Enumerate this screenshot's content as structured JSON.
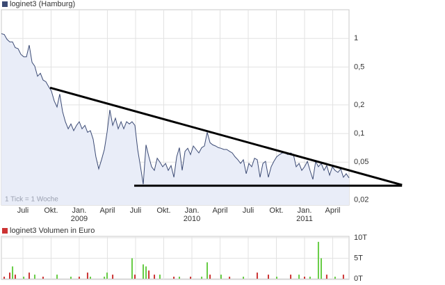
{
  "chart_data": [
    {
      "type": "line",
      "log_scale": true,
      "grid": true,
      "annotation": "1 Tick = 1 Woche",
      "x": [
        2008.309,
        2008.334,
        2008.358,
        2008.383,
        2008.408,
        2008.432,
        2008.457,
        2008.482,
        2008.507,
        2008.531,
        2008.556,
        2008.581,
        2008.605,
        2008.63,
        2008.655,
        2008.679,
        2008.704,
        2008.729,
        2008.753,
        2008.778,
        2008.803,
        2008.827,
        2008.852,
        2008.877,
        2008.902,
        2008.926,
        2008.951,
        2008.976,
        2009.0,
        2009.025,
        2009.05,
        2009.074,
        2009.099,
        2009.124,
        2009.148,
        2009.173,
        2009.198,
        2009.223,
        2009.247,
        2009.272,
        2009.297,
        2009.321,
        2009.346,
        2009.371,
        2009.395,
        2009.42,
        2009.445,
        2009.469,
        2009.494,
        2009.519,
        2009.544,
        2009.568,
        2009.593,
        2009.618,
        2009.642,
        2009.667,
        2009.692,
        2009.716,
        2009.741,
        2009.766,
        2009.79,
        2009.815,
        2009.84,
        2009.865,
        2009.889,
        2009.914,
        2009.939,
        2009.963,
        2009.988,
        2010.013,
        2010.037,
        2010.062,
        2010.087,
        2010.111,
        2010.136,
        2010.161,
        2010.185,
        2010.21,
        2010.235,
        2010.259,
        2010.284,
        2010.309,
        2010.334,
        2010.358,
        2010.383,
        2010.408,
        2010.432,
        2010.457,
        2010.482,
        2010.506,
        2010.531,
        2010.556,
        2010.58,
        2010.605,
        2010.63,
        2010.654,
        2010.679,
        2010.704,
        2010.728,
        2010.753,
        2010.778,
        2010.802,
        2010.827,
        2010.852,
        2010.877,
        2010.901,
        2010.926,
        2010.951,
        2010.975,
        2011.0,
        2011.025,
        2011.049,
        2011.074,
        2011.099,
        2011.123,
        2011.148,
        2011.173,
        2011.197,
        2011.222,
        2011.247,
        2011.271,
        2011.296,
        2011.321,
        2011.345,
        2011.37,
        2011.395
      ],
      "series": [
        {
          "name": "loginet3 (Hamburg)",
          "color": "#3b4a74",
          "fill": "#e9edf8",
          "values": [
            1.12,
            1.1,
            0.98,
            0.92,
            0.92,
            0.8,
            0.78,
            0.68,
            0.64,
            0.64,
            0.85,
            0.56,
            0.51,
            0.4,
            0.43,
            0.365,
            0.35,
            0.31,
            0.28,
            0.22,
            0.19,
            0.26,
            0.17,
            0.133,
            0.112,
            0.126,
            0.107,
            0.122,
            0.133,
            0.112,
            0.122,
            0.103,
            0.107,
            0.087,
            0.057,
            0.0425,
            0.053,
            0.068,
            0.103,
            0.177,
            0.122,
            0.145,
            0.112,
            0.133,
            0.112,
            0.133,
            0.126,
            0.133,
            0.122,
            0.068,
            0.0447,
            0.0293,
            0.076,
            0.057,
            0.0447,
            0.041,
            0.055,
            0.05,
            0.0447,
            0.0485,
            0.041,
            0.046,
            0.0347,
            0.057,
            0.071,
            0.041,
            0.065,
            0.07,
            0.06,
            0.074,
            0.068,
            0.0625,
            0.071,
            0.074,
            0.103,
            0.08,
            0.076,
            0.074,
            0.071,
            0.07,
            0.068,
            0.068,
            0.065,
            0.0625,
            0.057,
            0.053,
            0.0485,
            0.053,
            0.0378,
            0.0485,
            0.0447,
            0.055,
            0.053,
            0.0347,
            0.0485,
            0.051,
            0.0347,
            0.0447,
            0.051,
            0.057,
            0.06,
            0.0625,
            0.0625,
            0.06,
            0.0625,
            0.06,
            0.0447,
            0.0485,
            0.041,
            0.0447,
            0.051,
            0.041,
            0.033,
            0.051,
            0.0447,
            0.0485,
            0.041,
            0.046,
            0.0365,
            0.0447,
            0.041,
            0.039,
            0.0425,
            0.0347,
            0.0378,
            0.0341
          ]
        }
      ],
      "trendlines": [
        {
          "color": "#000000",
          "x": [
            2008.741,
            2011.865
          ],
          "values": [
            0.303,
            0.0288
          ]
        },
        {
          "color": "#000000",
          "x": [
            2009.488,
            2011.865
          ],
          "values": [
            0.0283,
            0.0283
          ]
        }
      ],
      "xlim": [
        2008.309,
        2011.395
      ],
      "xticks": [
        {
          "value": 2008.5,
          "label": "Juli"
        },
        {
          "value": 2008.75,
          "label": "Okt."
        },
        {
          "value": 2009,
          "label": "Jan."
        },
        {
          "value": 2009.25,
          "label": "April"
        },
        {
          "value": 2009.5,
          "label": "Juli"
        },
        {
          "value": 2009.75,
          "label": "Okt."
        },
        {
          "value": 2010,
          "label": "Jan."
        },
        {
          "value": 2010.25,
          "label": "April"
        },
        {
          "value": 2010.5,
          "label": "Juli"
        },
        {
          "value": 2010.75,
          "label": "Okt."
        },
        {
          "value": 2011,
          "label": "Jan."
        },
        {
          "value": 2011.25,
          "label": "April"
        }
      ],
      "year_ticks": [
        2009,
        2010,
        2011
      ],
      "ylim": [
        0.0177,
        2
      ],
      "yticks": [
        1,
        {
          "value": 0.5,
          "label": "0,5"
        },
        {
          "value": 0.2,
          "label": "0,2"
        },
        {
          "value": 0.1,
          "label": "0,1"
        },
        {
          "value": 0.05,
          "label": "0,05"
        },
        {
          "value": 0.02,
          "label": "0,02"
        }
      ]
    },
    {
      "type": "bar",
      "grid": true,
      "x": [
        2008.334,
        2008.383,
        2008.408,
        2008.432,
        2008.507,
        2008.556,
        2008.605,
        2008.679,
        2008.803,
        2008.926,
        2009.0,
        2009.074,
        2009.099,
        2009.223,
        2009.247,
        2009.297,
        2009.469,
        2009.494,
        2009.568,
        2009.593,
        2009.618,
        2009.667,
        2009.716,
        2009.84,
        2009.889,
        2009.988,
        2010.087,
        2010.136,
        2010.161,
        2010.259,
        2010.334,
        2010.457,
        2010.58,
        2010.679,
        2010.753,
        2010.877,
        2010.951,
        2011.0,
        2011.049,
        2011.123,
        2011.148,
        2011.197,
        2011.271,
        2011.345
      ],
      "series": [
        {
          "name": "loginet3 Volumen in Euro",
          "color": "#cc3333",
          "values": [
            500,
            1500,
            3000,
            1000,
            500,
            1500,
            1000,
            500,
            1000,
            500,
            500,
            1500,
            500,
            500,
            1500,
            1000,
            5000,
            1000,
            3500,
            3000,
            2000,
            1000,
            1000,
            500,
            500,
            500,
            500,
            4000,
            1000,
            1000,
            500,
            500,
            1500,
            1000,
            500,
            1000,
            1000,
            500,
            500,
            9000,
            5000,
            1000,
            500,
            1000
          ],
          "colors": [
            "#cc3333",
            "#cc3333",
            "#66cc44",
            "#cc3333",
            "#66cc44",
            "#cc3333",
            "#66cc44",
            "#cc3333",
            "#66cc44",
            "#66cc44",
            "#cc3333",
            "#cc3333",
            "#66cc44",
            "#66cc44",
            "#66cc44",
            "#cc3333",
            "#66cc44",
            "#cc3333",
            "#66cc44",
            "#66cc44",
            "#cc3333",
            "#cc3333",
            "#66cc44",
            "#cc3333",
            "#66cc44",
            "#cc3333",
            "#66cc44",
            "#66cc44",
            "#cc3333",
            "#66cc44",
            "#cc3333",
            "#66cc44",
            "#cc3333",
            "#cc3333",
            "#66cc44",
            "#cc3333",
            "#66cc44",
            "#cc3333",
            "#66cc44",
            "#66cc44",
            "#66cc44",
            "#cc3333",
            "#66cc44",
            "#cc3333"
          ]
        }
      ],
      "xlim": [
        2008.309,
        2011.395
      ],
      "ylim": [
        0,
        10000
      ],
      "yticks": [
        {
          "value": 10000,
          "label": "10T"
        },
        {
          "value": 5000,
          "label": "5T"
        },
        {
          "value": 0,
          "label": "0T"
        }
      ]
    }
  ]
}
